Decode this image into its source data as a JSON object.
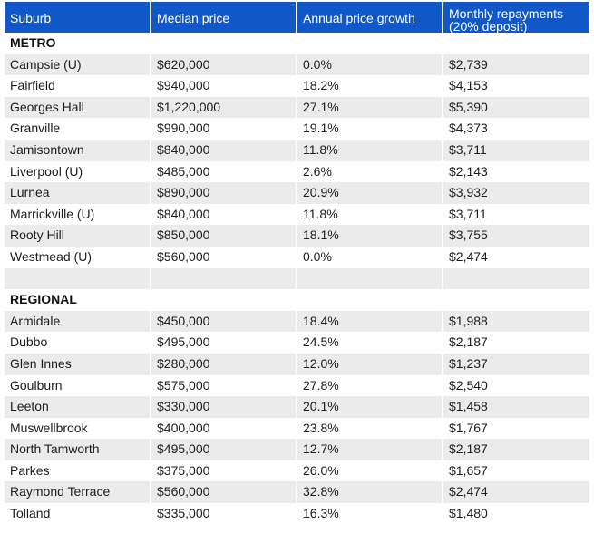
{
  "headers": [
    "Suburb",
    "Median price",
    "Annual price growth",
    "Monthly repayments\n(20% deposit)"
  ],
  "metro": {
    "label": "METRO",
    "rows": [
      [
        "Campsie (U)",
        "$620,000",
        "0.0%",
        "$2,739"
      ],
      [
        "Fairfield",
        "$940,000",
        "18.2%",
        "$4,153"
      ],
      [
        "Georges Hall",
        "$1,220,000",
        "27.1%",
        "$5,390"
      ],
      [
        "Granville",
        "$990,000",
        "19.1%",
        "$4,373"
      ],
      [
        "Jamisontown",
        "$840,000",
        "11.8%",
        "$3,711"
      ],
      [
        "Liverpool (U)",
        "$485,000",
        "2.6%",
        "$2,143"
      ],
      [
        "Lurnea",
        "$890,000",
        "20.9%",
        "$3,932"
      ],
      [
        "Marrickville (U)",
        "$840,000",
        "11.8%",
        "$3,711"
      ],
      [
        "Rooty Hill",
        "$850,000",
        "18.1%",
        "$3,755"
      ],
      [
        "Westmead (U)",
        "$560,000",
        "0.0%",
        "$2,474"
      ]
    ]
  },
  "regional": {
    "label": "REGIONAL",
    "rows": [
      [
        "Armidale",
        "$450,000",
        "18.4%",
        "$1,988"
      ],
      [
        "Dubbo",
        "$495,000",
        "24.5%",
        "$2,187"
      ],
      [
        "Glen Innes",
        "$280,000",
        "12.0%",
        "$1,237"
      ],
      [
        "Goulburn",
        "$575,000",
        "27.8%",
        "$2,540"
      ],
      [
        "Leeton",
        "$330,000",
        "20.1%",
        "$1,458"
      ],
      [
        "Muswellbrook",
        "$400,000",
        "23.8%",
        "$1,767"
      ],
      [
        "North Tamworth",
        "$495,000",
        "12.7%",
        "$2,187"
      ],
      [
        "Parkes",
        "$375,000",
        "26.0%",
        "$1,657"
      ],
      [
        "Raymond Terrace",
        "$560,000",
        "32.8%",
        "$2,474"
      ],
      [
        "Tolland",
        "$335,000",
        "16.3%",
        "$1,480"
      ]
    ]
  },
  "colors": {
    "header_bg": "#1257c7",
    "header_text": "#ffffff",
    "stripe": "#ebebeb"
  }
}
